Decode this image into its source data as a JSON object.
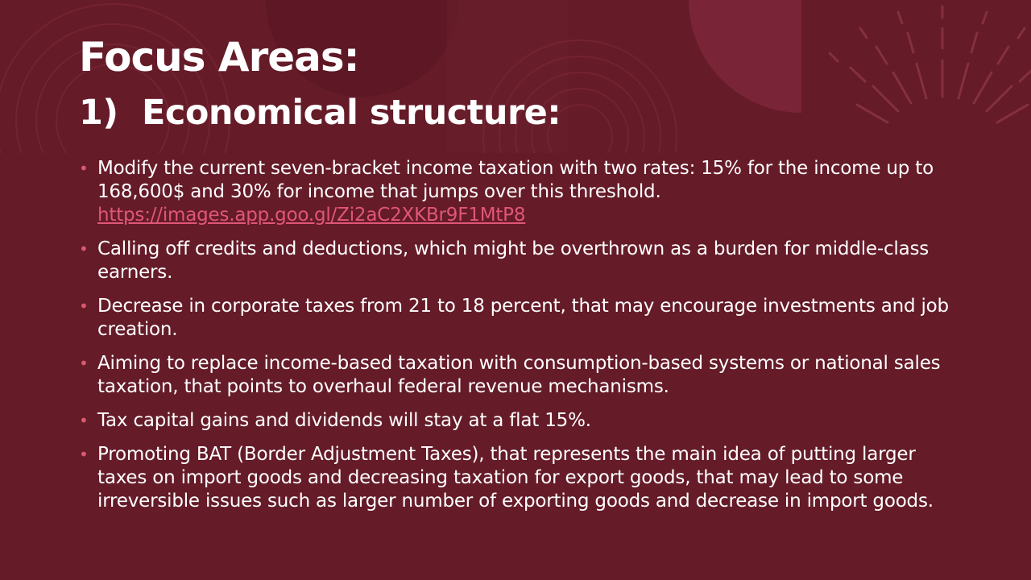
{
  "slide": {
    "title": "Focus Areas:",
    "subtitle_number": "1)",
    "subtitle_text": "Economical structure:",
    "bullet_glyph": "•",
    "bullets": [
      {
        "text": "Modify the current seven-bracket income taxation with two rates: 15% for the income up to 168,600$ and 30% for income that jumps over this threshold.",
        "link": "https://images.app.goo.gl/Zi2aC2XKBr9F1MtP8"
      },
      {
        "text": "Calling off credits and deductions, which might be overthrown as a burden for middle-class earners."
      },
      {
        "text": "Decrease in corporate taxes from 21 to 18 percent, that may encourage investments and job creation."
      },
      {
        "text": "Aiming to replace income-based taxation with consumption-based systems or national sales taxation, that points to overhaul federal revenue mechanisms."
      },
      {
        "text": "Tax capital gains and dividends will stay at a flat 15%."
      },
      {
        "text": "Promoting BAT (Border Adjustment Taxes), that represents the main idea of putting larger taxes on import goods and decreasing taxation for export goods, that may lead to some irreversible issues such as larger number of exporting goods and decrease in import goods."
      }
    ]
  },
  "colors": {
    "background": "#651b28",
    "text": "#ffffff",
    "bullet": "#d9596f",
    "link": "#e0567a"
  }
}
